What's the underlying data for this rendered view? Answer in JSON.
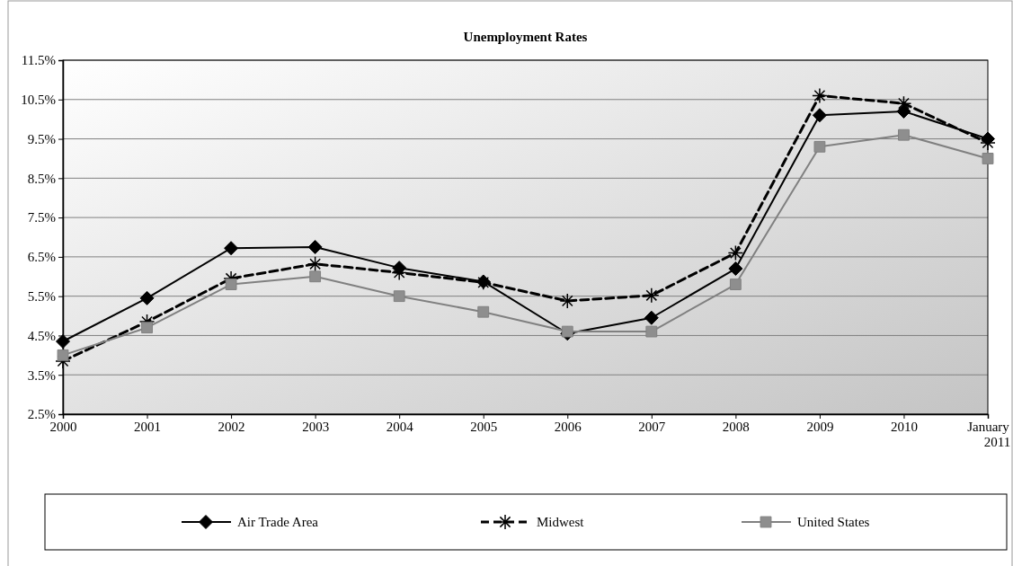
{
  "chart_data": {
    "type": "line",
    "title": "Unemployment Rates",
    "categories": [
      "2000",
      "2001",
      "2002",
      "2003",
      "2004",
      "2005",
      "2006",
      "2007",
      "2008",
      "2009",
      "2010",
      "January 2011"
    ],
    "series": [
      {
        "name": "Air Trade Area",
        "color": "#000000",
        "marker": "diamond",
        "line_style": "solid",
        "values": [
          4.35,
          5.45,
          6.72,
          6.75,
          6.22,
          5.87,
          4.55,
          4.95,
          6.2,
          10.1,
          10.2,
          9.5
        ]
      },
      {
        "name": "Midwest",
        "color": "#000000",
        "marker": "cross",
        "line_style": "dashed",
        "values": [
          3.85,
          4.85,
          5.95,
          6.32,
          6.1,
          5.85,
          5.38,
          5.52,
          6.6,
          10.6,
          10.4,
          9.4
        ]
      },
      {
        "name": "United States",
        "color": "#808080",
        "marker": "square",
        "line_style": "solid",
        "values": [
          4.0,
          4.7,
          5.8,
          6.0,
          5.5,
          5.1,
          4.6,
          4.6,
          5.8,
          9.3,
          9.6,
          9.0
        ]
      }
    ],
    "ylim": [
      2.5,
      11.5
    ],
    "yticks": [
      {
        "value": 2.5,
        "label": "2.5%"
      },
      {
        "value": 3.5,
        "label": "3.5%"
      },
      {
        "value": 4.5,
        "label": "4.5%"
      },
      {
        "value": 5.5,
        "label": "5.5%"
      },
      {
        "value": 6.5,
        "label": "6.5%"
      },
      {
        "value": 7.5,
        "label": "7.5%"
      },
      {
        "value": 8.5,
        "label": "8.5%"
      },
      {
        "value": 9.5,
        "label": "9.5%"
      },
      {
        "value": 10.5,
        "label": "10.5%"
      },
      {
        "value": 11.5,
        "label": "11.5%"
      }
    ],
    "grid": "y",
    "legend": "bottom"
  }
}
